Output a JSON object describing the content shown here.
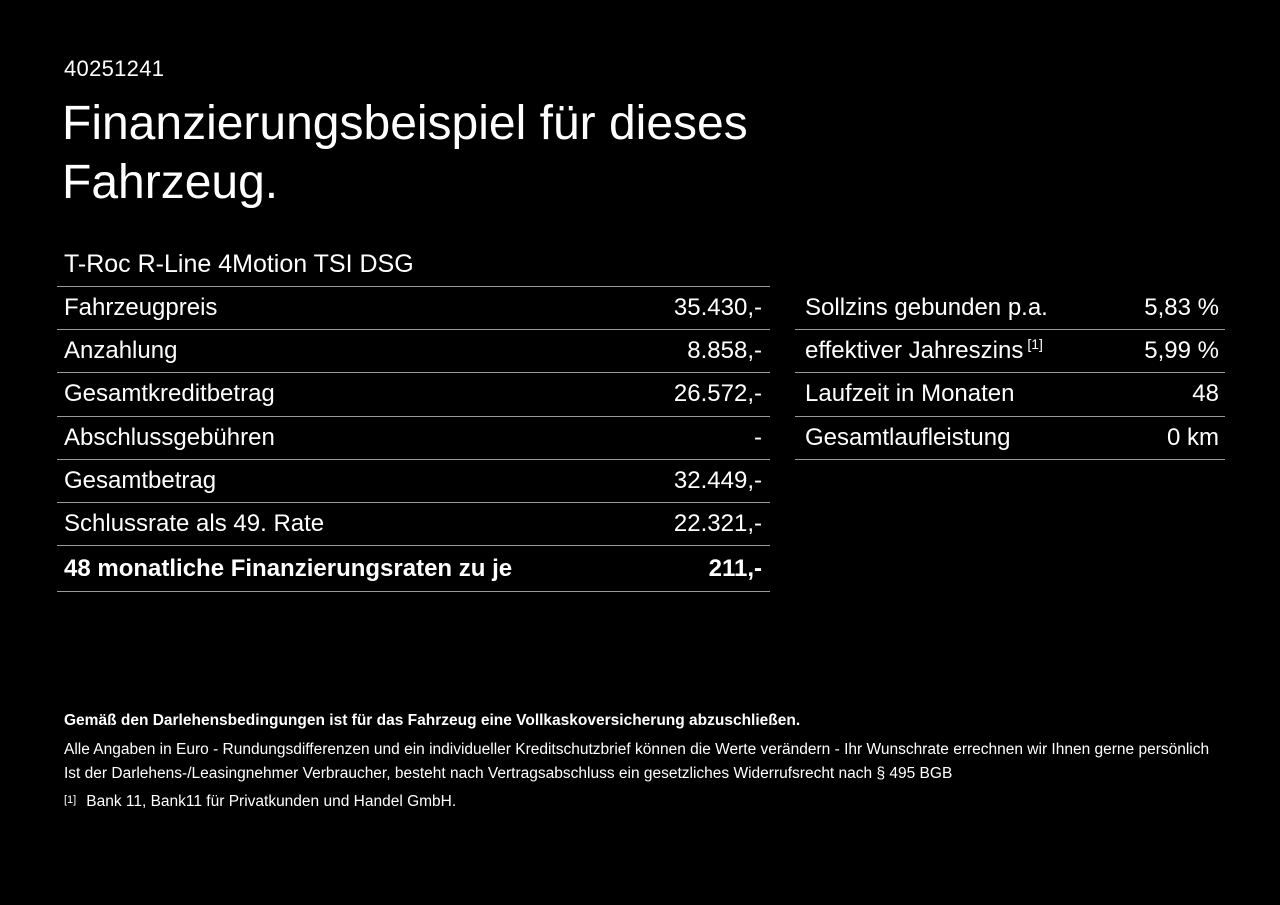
{
  "colors": {
    "background": "#000000",
    "text": "#ffffff",
    "divider": "#999999"
  },
  "header": {
    "reference_number": "40251241",
    "title_line1": "Finanzierungsbeispiel für dieses",
    "title_line2": "Fahrzeug.",
    "vehicle_model": "T-Roc R-Line 4Motion TSI DSG"
  },
  "financing_table": {
    "rows": [
      {
        "label": "Fahrzeugpreis",
        "value": "35.430,-"
      },
      {
        "label": "Anzahlung",
        "value": "8.858,-"
      },
      {
        "label": "Gesamtkreditbetrag",
        "value": "26.572,-"
      },
      {
        "label": "Abschlussgebühren",
        "value": "-"
      },
      {
        "label": "Gesamtbetrag",
        "value": "32.449,-"
      },
      {
        "label": "Schlussrate als 49. Rate",
        "value": "22.321,-"
      },
      {
        "label": "48 monatliche Finanzierungsraten zu je",
        "value": "211,-"
      }
    ]
  },
  "conditions_table": {
    "rows": [
      {
        "label": "Sollzins gebunden p.a.",
        "value": "5,83 %"
      },
      {
        "label": "effektiver Jahreszins",
        "superscript": "[1]",
        "value": "5,99 %"
      },
      {
        "label": "Laufzeit in Monaten",
        "value": "48"
      },
      {
        "label": "Gesamtlaufleistung",
        "value": "0 km"
      }
    ]
  },
  "footer": {
    "insurance_note": "Gemäß den Darlehensbedingungen ist für das Fahrzeug eine Vollkaskoversicherung abzuschließen.",
    "disclaimer_line1": "Alle Angaben in Euro - Rundungsdifferenzen und ein individueller Kreditschutzbrief können die Werte verändern - Ihr Wunschrate errechnen wir Ihnen gerne persönlich",
    "disclaimer_line2": "Ist der Darlehens-/Leasingnehmer Verbraucher, besteht nach Vertragsabschluss ein gesetzliches Widerrufsrecht nach § 495 BGB",
    "footnote_marker": "[1]",
    "footnote_text": "Bank 11, Bank11 für Privatkunden und Handel GmbH."
  }
}
